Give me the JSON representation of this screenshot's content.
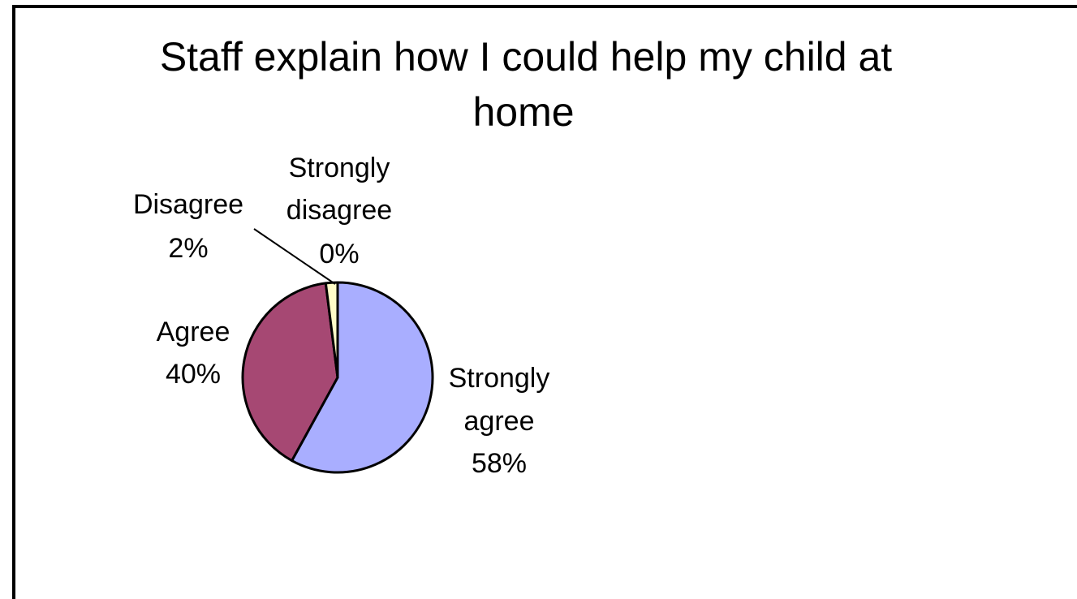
{
  "chart_data": {
    "type": "pie",
    "title": "Staff explain how I could help my child at home",
    "title_lines": [
      "Staff explain how I could help my child at",
      "home"
    ],
    "slices": [
      {
        "label": "Strongly agree",
        "label_lines": [
          "Strongly",
          "agree"
        ],
        "value": 58,
        "value_text": "58%",
        "color": "#a9aeff"
      },
      {
        "label": "Agree",
        "label_lines": [
          "Agree"
        ],
        "value": 40,
        "value_text": "40%",
        "color": "#a64873"
      },
      {
        "label": "Disagree",
        "label_lines": [
          "Disagree"
        ],
        "value": 2,
        "value_text": "2%",
        "color": "#fffcc8"
      },
      {
        "label": "Strongly disagree",
        "label_lines": [
          "Strongly",
          "disagree"
        ],
        "value": 0,
        "value_text": "0%",
        "color": "#cfe7ff"
      }
    ],
    "legend": "none",
    "data_labels": "outside"
  }
}
